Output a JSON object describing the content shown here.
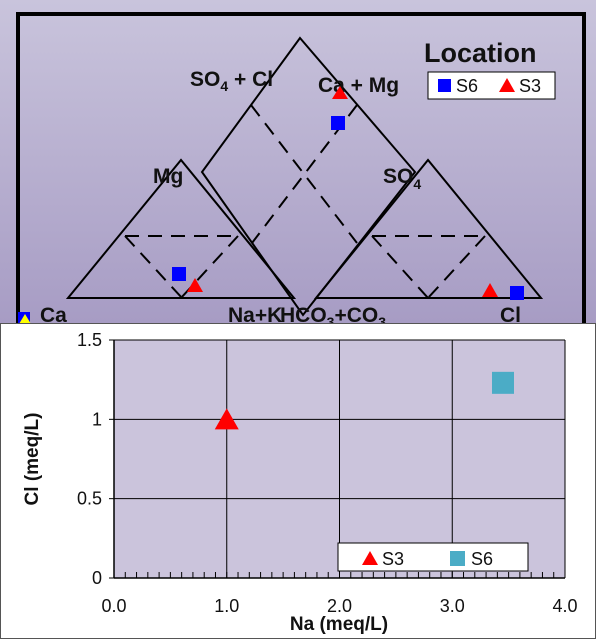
{
  "chart_data": [
    {
      "type": "scatter",
      "subtype": "piper-diagram",
      "labels": {
        "so4_cl": "SO4 + Cl",
        "ca_mg": "Ca + Mg",
        "mg": "Mg",
        "so4": "SO4",
        "ca": "Ca",
        "na_k": "Na+K",
        "hco3_co3": "HCO3+CO3",
        "cl": "Cl"
      },
      "legend": {
        "title": "Location",
        "placement": "top-right",
        "entries": [
          "S6",
          "S3"
        ]
      },
      "series": [
        {
          "name": "S6",
          "color": "#0000ff",
          "marker": "square"
        },
        {
          "name": "S3",
          "color": "#ff0000",
          "marker": "triangle"
        }
      ]
    },
    {
      "type": "scatter",
      "title": "",
      "xlabel": "Na (meq/L)",
      "ylabel": "Cl (meq/L)",
      "xlim": [
        0,
        4
      ],
      "ylim": [
        0,
        1.5
      ],
      "xticks": [
        "0.0",
        "1.0",
        "2.0",
        "3.0",
        "4.0"
      ],
      "yticks": [
        "0",
        "0.5",
        "1",
        "1.5"
      ],
      "grid": true,
      "legend_placement": "bottom-right",
      "series": [
        {
          "name": "S3",
          "color": "#ff0000",
          "marker": "triangle",
          "x": [
            1.0
          ],
          "y": [
            1.0
          ]
        },
        {
          "name": "S6",
          "color": "#4bacc6",
          "marker": "square",
          "x": [
            3.45
          ],
          "y": [
            1.23
          ]
        }
      ]
    }
  ]
}
